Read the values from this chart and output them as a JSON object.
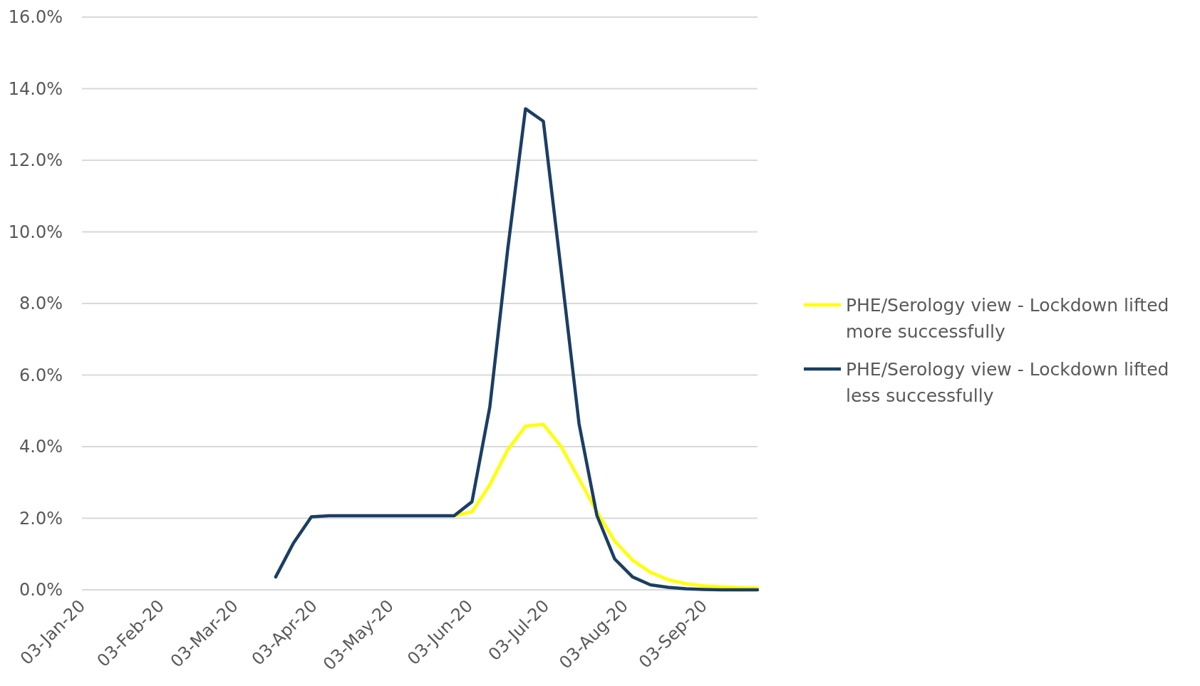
{
  "chart_data": {
    "type": "line",
    "x": [
      "2020-03-19",
      "2020-03-26",
      "2020-04-02",
      "2020-04-09",
      "2020-04-16",
      "2020-04-23",
      "2020-04-30",
      "2020-05-07",
      "2020-05-14",
      "2020-05-21",
      "2020-05-28",
      "2020-06-04",
      "2020-06-11",
      "2020-06-18",
      "2020-06-25",
      "2020-07-02",
      "2020-07-09",
      "2020-07-16",
      "2020-07-23",
      "2020-07-30",
      "2020-08-06",
      "2020-08-13",
      "2020-08-20",
      "2020-08-27",
      "2020-09-03",
      "2020-09-10",
      "2020-09-17",
      "2020-09-24"
    ],
    "series": [
      {
        "name": "PHE/Serology view - Lockdown lifted more successfully",
        "color": "#ffff00",
        "values": [
          null,
          null,
          null,
          null,
          null,
          null,
          null,
          null,
          null,
          null,
          2.07,
          2.18,
          2.93,
          3.91,
          4.57,
          4.62,
          4.0,
          3.1,
          2.18,
          1.36,
          0.83,
          0.49,
          0.28,
          0.17,
          0.11,
          0.08,
          0.06,
          0.05
        ]
      },
      {
        "name": "PHE/Serology view - Lockdown lifted less successfully",
        "color": "#1b3e63",
        "values": [
          0.36,
          1.31,
          2.04,
          2.07,
          2.07,
          2.07,
          2.07,
          2.07,
          2.07,
          2.07,
          2.07,
          2.46,
          5.11,
          9.5,
          13.44,
          13.09,
          8.9,
          4.64,
          2.08,
          0.86,
          0.36,
          0.14,
          0.07,
          0.03,
          0.01,
          0.0,
          0.0,
          0.0
        ]
      }
    ],
    "xlim": [
      "2020-01-03",
      "2020-09-24"
    ],
    "xticks": [
      {
        "value": "2020-01-03",
        "label": "03-Jan-20"
      },
      {
        "value": "2020-02-03",
        "label": "03-Feb-20"
      },
      {
        "value": "2020-03-03",
        "label": "03-Mar-20"
      },
      {
        "value": "2020-04-03",
        "label": "03-Apr-20"
      },
      {
        "value": "2020-05-03",
        "label": "03-May-20"
      },
      {
        "value": "2020-06-03",
        "label": "03-Jun-20"
      },
      {
        "value": "2020-07-03",
        "label": "03-Jul-20"
      },
      {
        "value": "2020-08-03",
        "label": "03-Aug-20"
      },
      {
        "value": "2020-09-03",
        "label": "03-Sep-20"
      }
    ],
    "ylim": [
      0,
      16
    ],
    "yticks": [
      {
        "value": 0,
        "label": "0.0%"
      },
      {
        "value": 2,
        "label": "2.0%"
      },
      {
        "value": 4,
        "label": "4.0%"
      },
      {
        "value": 6,
        "label": "6.0%"
      },
      {
        "value": 8,
        "label": "8.0%"
      },
      {
        "value": 10,
        "label": "10.0%"
      },
      {
        "value": 12,
        "label": "12.0%"
      },
      {
        "value": 14,
        "label": "14.0%"
      },
      {
        "value": 16,
        "label": "16.0%"
      }
    ],
    "grid": "y",
    "legend": "right",
    "marker": "none",
    "line_style": "solid"
  }
}
